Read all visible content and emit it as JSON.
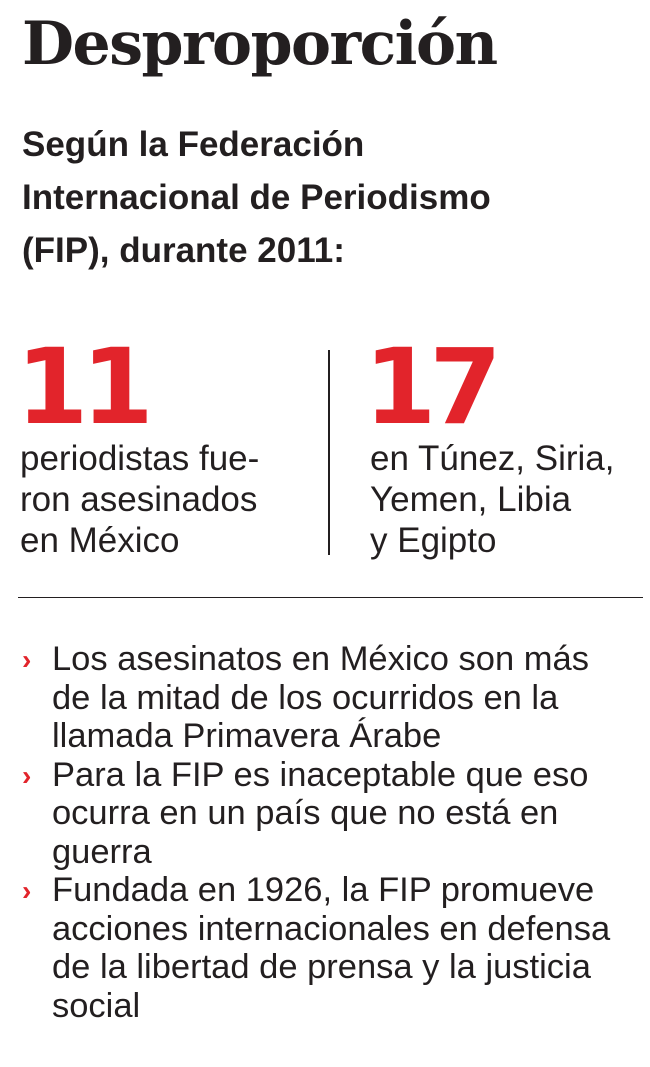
{
  "title": "Desproporción",
  "subtitle_lines": [
    "Según la Federación",
    "Internacional de Periodismo",
    "(FIP), durante 2011:"
  ],
  "stats": [
    {
      "number": "11",
      "lines": [
        "periodistas fue-",
        "ron asesinados",
        "en México"
      ]
    },
    {
      "number": "17",
      "lines": [
        "en Túnez, Siria,",
        "Yemen, Libia",
        "y Egipto"
      ]
    }
  ],
  "bullets": [
    {
      "lines": [
        "Los asesinatos en México son más",
        "de la mitad de los ocurridos en la",
        "llamada Primavera Árabe"
      ]
    },
    {
      "lines": [
        "Para la FIP es inaceptable que eso",
        "ocurra en un país que no está en",
        "guerra"
      ]
    },
    {
      "lines": [
        "Fundada en 1926, la FIP promueve",
        "acciones internacionales en defensa",
        "de la libertad de prensa y la justicia",
        "social"
      ]
    }
  ],
  "bullet_marker": "›",
  "colors": {
    "accent": "#e2242b",
    "text": "#231f20"
  }
}
